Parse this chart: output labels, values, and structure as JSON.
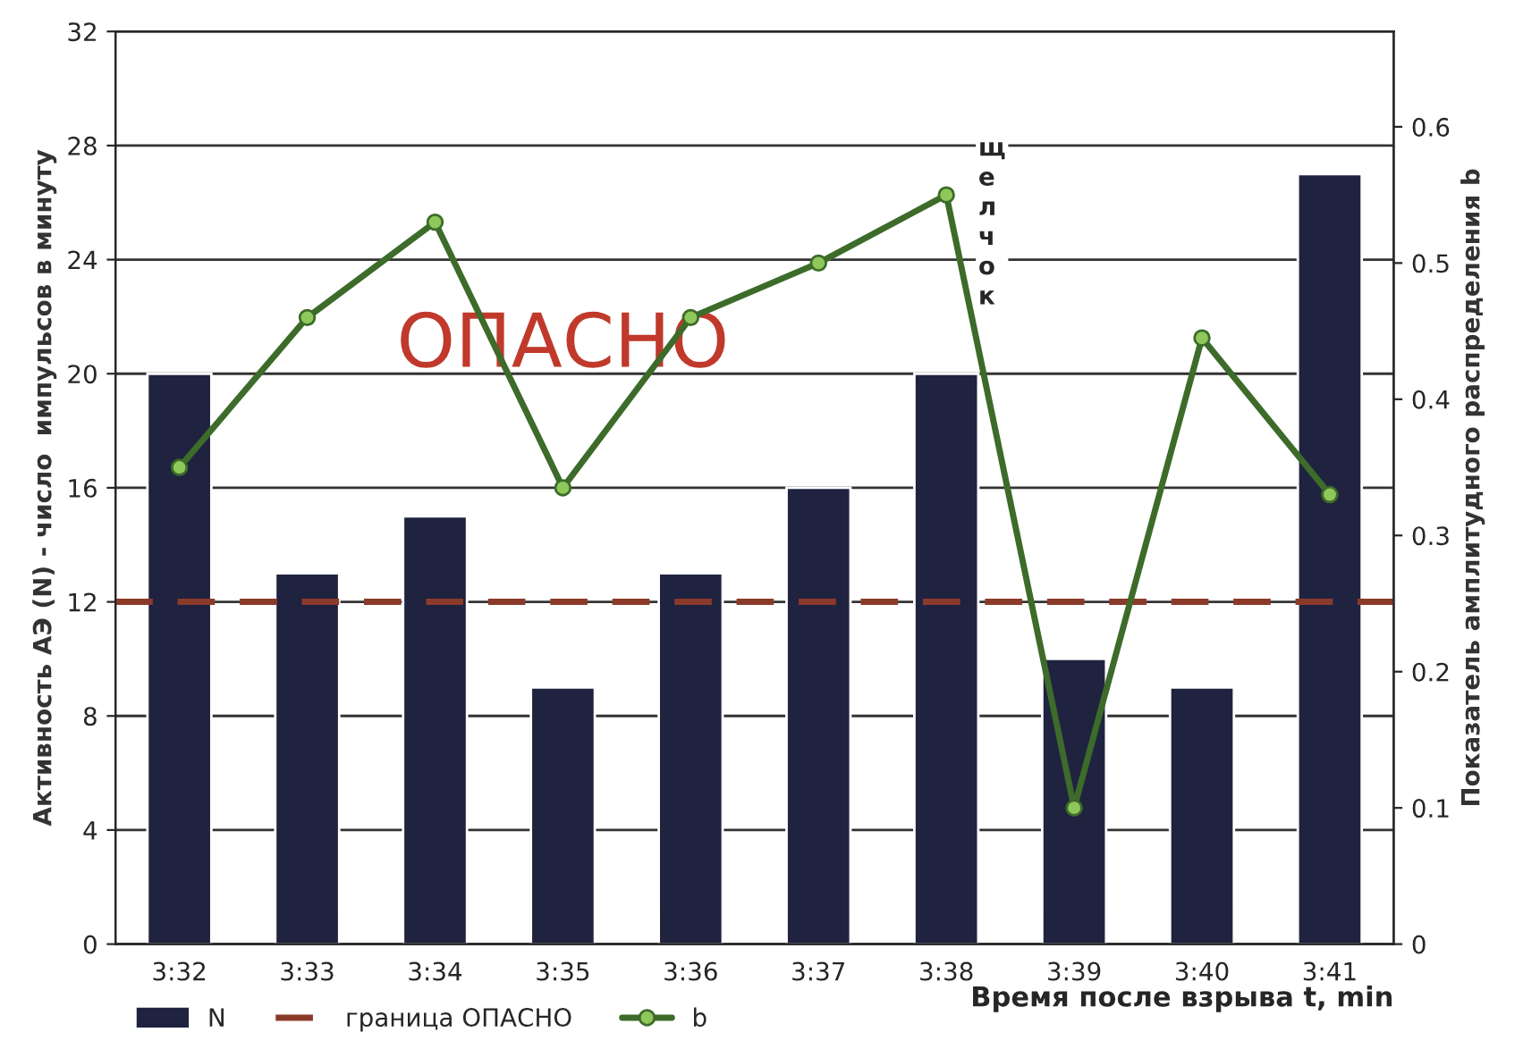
{
  "chart_data": {
    "type": "bar",
    "categories": [
      "3:32",
      "3:33",
      "3:34",
      "3:35",
      "3:36",
      "3:37",
      "3:38",
      "3:39",
      "3:40",
      "3:41"
    ],
    "series": [
      {
        "name": "N",
        "color": "#1f2340",
        "values": [
          20,
          13,
          15,
          9,
          13,
          16,
          20,
          10,
          9,
          27
        ]
      },
      {
        "name": "b",
        "type": "line",
        "axis": "y2",
        "color": "#3d6b2a",
        "marker": "circle",
        "values": [
          0.35,
          0.46,
          0.53,
          0.335,
          0.46,
          0.5,
          0.55,
          0.1,
          0.445,
          0.33
        ]
      }
    ],
    "ylabel": "Активность АЭ (N) - число  импульсов в минуту",
    "y2label": "Показатель амплитудного распределения b",
    "xlabel": "Время после взрыва t, min",
    "ylim": [
      0,
      32
    ],
    "yticks": [
      0,
      4,
      8,
      12,
      16,
      20,
      24,
      28,
      32
    ],
    "y2lim": [
      0,
      0.67
    ],
    "y2ticks": [
      0,
      0.1,
      0.2,
      0.3,
      0.4,
      0.5,
      0.6
    ],
    "ref_lines": [
      {
        "axis": "y",
        "value": 12,
        "label": "граница ОПАСНО",
        "color": "#8b3a2a",
        "line_style": "dashed"
      }
    ],
    "annotations": [
      "ОПАСНО",
      "щелчок"
    ],
    "grid": "y",
    "legend": "bottom"
  }
}
